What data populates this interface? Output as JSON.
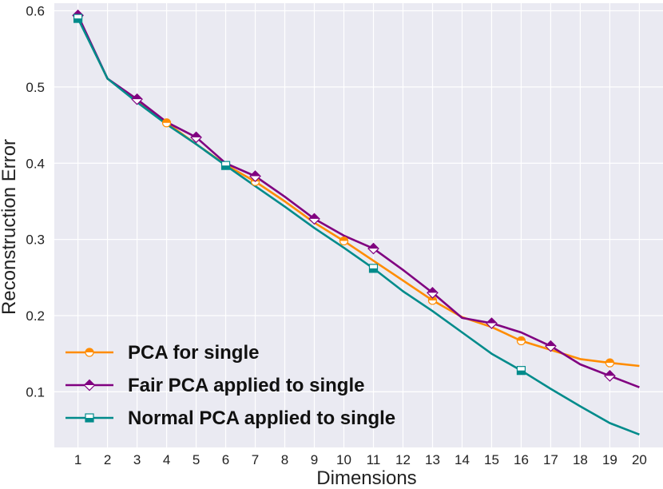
{
  "chart_data": {
    "type": "line",
    "title": "",
    "xlabel": "Dimensions",
    "ylabel": "Reconstruction Error",
    "x": [
      1,
      2,
      3,
      4,
      5,
      6,
      7,
      8,
      9,
      10,
      11,
      12,
      13,
      14,
      15,
      16,
      17,
      18,
      19,
      20
    ],
    "xlim": [
      0.2,
      20.8
    ],
    "ylim": [
      0.027,
      0.61
    ],
    "yticks": [
      0.1,
      0.2,
      0.3,
      0.4,
      0.5,
      0.6
    ],
    "ytick_labels": [
      "0.1",
      "0.2",
      "0.3",
      "0.4",
      "0.5",
      "0.6"
    ],
    "grid": true,
    "legend_position": "bottom-left",
    "background": "#eaeaf2",
    "series": [
      {
        "name": "PCA for single",
        "color": "#ff8c00",
        "marker": "circle",
        "values": [
          0.591,
          0.511,
          0.482,
          0.453,
          0.425,
          0.398,
          0.376,
          0.35,
          0.322,
          0.298,
          0.272,
          0.246,
          0.22,
          0.198,
          0.185,
          0.167,
          0.155,
          0.143,
          0.138,
          0.134
        ],
        "marker_points": [
          1,
          4,
          7,
          10,
          13,
          16,
          19
        ]
      },
      {
        "name": "Fair PCA applied to single",
        "color": "#800080",
        "marker": "diamond",
        "values": [
          0.594,
          0.511,
          0.484,
          0.454,
          0.434,
          0.4,
          0.383,
          0.356,
          0.327,
          0.305,
          0.288,
          0.26,
          0.23,
          0.197,
          0.19,
          0.178,
          0.16,
          0.136,
          0.121,
          0.106
        ],
        "marker_points": [
          1,
          3,
          5,
          7,
          9,
          11,
          13,
          15,
          17,
          19
        ]
      },
      {
        "name": "Normal PCA applied to single",
        "color": "#008b8b",
        "marker": "square",
        "values": [
          0.59,
          0.511,
          0.48,
          0.451,
          0.425,
          0.397,
          0.37,
          0.343,
          0.315,
          0.289,
          0.262,
          0.232,
          0.206,
          0.178,
          0.15,
          0.128,
          0.104,
          0.081,
          0.059,
          0.044
        ],
        "marker_points": [
          1,
          6,
          11,
          16
        ]
      }
    ]
  }
}
